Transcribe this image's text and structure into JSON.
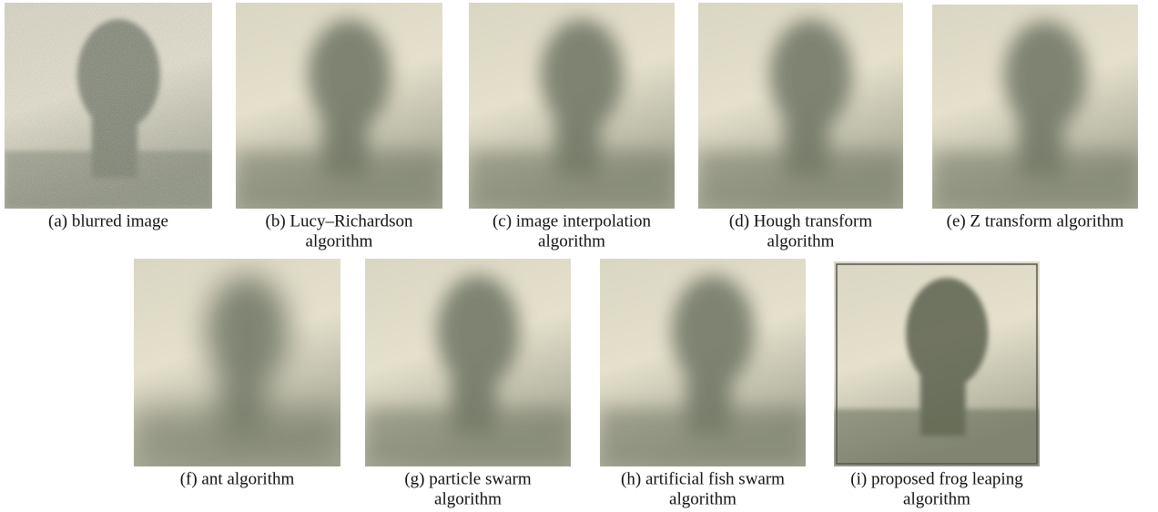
{
  "panels": [
    {
      "caption": [
        "(a) blurred image"
      ]
    },
    {
      "caption": [
        "(b) Lucy–Richardson",
        "algorithm"
      ]
    },
    {
      "caption": [
        "(c) image interpolation",
        "algorithm"
      ]
    },
    {
      "caption": [
        "(d) Hough transform",
        "algorithm"
      ]
    },
    {
      "caption": [
        "(e) Z transform algorithm"
      ]
    },
    {
      "caption": [
        "(f) ant algorithm"
      ]
    },
    {
      "caption": [
        "(g) particle swarm",
        "algorithm"
      ]
    },
    {
      "caption": [
        "(h) artificial fish swarm",
        "algorithm"
      ]
    },
    {
      "caption": [
        "(i) proposed frog leaping",
        "algorithm"
      ]
    }
  ]
}
